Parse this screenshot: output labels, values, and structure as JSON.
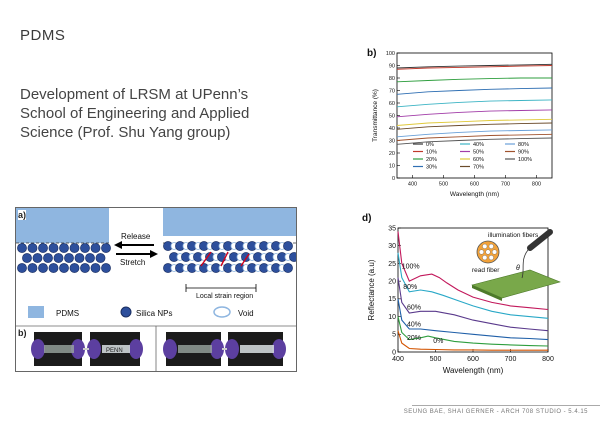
{
  "slide": {
    "title": "PDMS",
    "description": "Development of LRSM at UPenn’s\nSchool of Engineering and Applied\nScience (Prof. Shu Yang group)",
    "footer": "SEUNG BAE, SHAI GERNER  -  ARCH 708 STUDIO  -  5.4.15"
  },
  "figure_a": {
    "panel_label_a": "a)",
    "panel_label_b": "b)",
    "release_label": "Release",
    "stretch_label": "Stretch",
    "strain_label": "Local strain region",
    "legend": {
      "pdms": "PDMS",
      "silica": "Silica NPs",
      "void": "Void"
    },
    "sample_text": "PENN",
    "colors": {
      "pdms": "#8fb6e0",
      "silica": "#2d4f9c",
      "glove": "#5c3fa0"
    }
  },
  "chart_data": [
    {
      "panel": "b)",
      "type": "line",
      "xlabel": "Wavelength (nm)",
      "ylabel": "Transmittance (%)",
      "xlim": [
        350,
        850
      ],
      "ylim": [
        0,
        100
      ],
      "xticks": [
        400,
        500,
        600,
        700,
        800
      ],
      "yticks": [
        0,
        10,
        20,
        30,
        40,
        50,
        60,
        70,
        80,
        90,
        100
      ],
      "legend_position": "bottom-center",
      "x": [
        350,
        450,
        550,
        650,
        750,
        850
      ],
      "series": [
        {
          "name": "0%",
          "color": "#333333",
          "values": [
            88,
            89,
            89.5,
            90,
            90.5,
            91
          ]
        },
        {
          "name": "10%",
          "color": "#c0392b",
          "values": [
            87,
            88,
            88.5,
            89,
            89.5,
            90
          ]
        },
        {
          "name": "20%",
          "color": "#2e9e3e",
          "values": [
            77,
            78,
            79,
            79.5,
            80,
            80
          ]
        },
        {
          "name": "30%",
          "color": "#2f6fb3",
          "values": [
            67,
            69,
            70,
            71,
            71.5,
            72
          ]
        },
        {
          "name": "40%",
          "color": "#3cb4c4",
          "values": [
            57,
            59,
            60.5,
            61.5,
            62,
            62.5
          ]
        },
        {
          "name": "50%",
          "color": "#a23da8",
          "values": [
            49,
            51,
            52.5,
            53.5,
            54,
            54.5
          ]
        },
        {
          "name": "60%",
          "color": "#e0c93a",
          "values": [
            42,
            44,
            45,
            46,
            46.5,
            47
          ]
        },
        {
          "name": "70%",
          "color": "#6b4b2a",
          "values": [
            39,
            41,
            42,
            43,
            43.5,
            44
          ]
        },
        {
          "name": "80%",
          "color": "#6aa0d8",
          "values": [
            33,
            35,
            36.5,
            37.5,
            38,
            38.5
          ]
        },
        {
          "name": "90%",
          "color": "#a0522d",
          "values": [
            30,
            32,
            33,
            34,
            34.5,
            35
          ]
        },
        {
          "name": "100%",
          "color": "#555555",
          "values": [
            27,
            29,
            30,
            31,
            31.5,
            32
          ]
        }
      ]
    },
    {
      "panel": "d)",
      "type": "line",
      "xlabel": "Wavelength (nm)",
      "ylabel": "Reflectance (a.u)",
      "xlim": [
        400,
        800
      ],
      "ylim": [
        0,
        35
      ],
      "xticks": [
        400,
        500,
        600,
        700,
        800
      ],
      "yticks": [
        0,
        5,
        10,
        15,
        20,
        25,
        30,
        35
      ],
      "inset_labels": {
        "illumination": "illumination fibers",
        "read": "read fiber",
        "angle": "θ"
      },
      "series": [
        {
          "name": "100%",
          "color": "#c2185b",
          "x": [
            400,
            410,
            430,
            460,
            490,
            510,
            530,
            560,
            600,
            650,
            700,
            750,
            800
          ],
          "values": [
            34,
            25,
            20,
            21.5,
            22,
            21,
            19.5,
            17.5,
            15.5,
            14,
            13,
            12.5,
            12
          ]
        },
        {
          "name": "80%",
          "color": "#29a8c7",
          "x": [
            400,
            410,
            430,
            460,
            490,
            520,
            560,
            600,
            650,
            700,
            750,
            800
          ],
          "values": [
            28,
            21,
            17,
            17.5,
            17,
            16,
            14.5,
            13,
            11.5,
            10.5,
            10,
            9.5
          ]
        },
        {
          "name": "60%",
          "color": "#5a3a8c",
          "x": [
            400,
            410,
            430,
            460,
            500,
            550,
            600,
            650,
            700,
            750,
            800
          ],
          "values": [
            21,
            14,
            11,
            11.5,
            11.5,
            10.5,
            9,
            8,
            7,
            6.5,
            6
          ]
        },
        {
          "name": "40%",
          "color": "#1f5fa8",
          "x": [
            400,
            410,
            430,
            460,
            500,
            550,
            600,
            650,
            700,
            750,
            800
          ],
          "values": [
            15,
            9,
            6.5,
            6.5,
            6,
            5.5,
            5,
            4.5,
            4,
            3.8,
            3.5
          ]
        },
        {
          "name": "20%",
          "color": "#2e9e3e",
          "x": [
            400,
            410,
            430,
            460,
            480,
            500,
            550,
            600,
            650,
            700,
            750,
            800
          ],
          "values": [
            10,
            5.5,
            3.5,
            4,
            4.5,
            4,
            3,
            2.5,
            2.2,
            2,
            1.8,
            1.7
          ]
        },
        {
          "name": "0%",
          "color": "#d35400",
          "x": [
            400,
            410,
            430,
            460,
            500,
            550,
            600,
            650,
            700,
            750,
            800
          ],
          "values": [
            6,
            2.5,
            1,
            0.8,
            0.7,
            0.6,
            0.6,
            0.5,
            0.5,
            0.5,
            0.5
          ]
        }
      ]
    }
  ]
}
